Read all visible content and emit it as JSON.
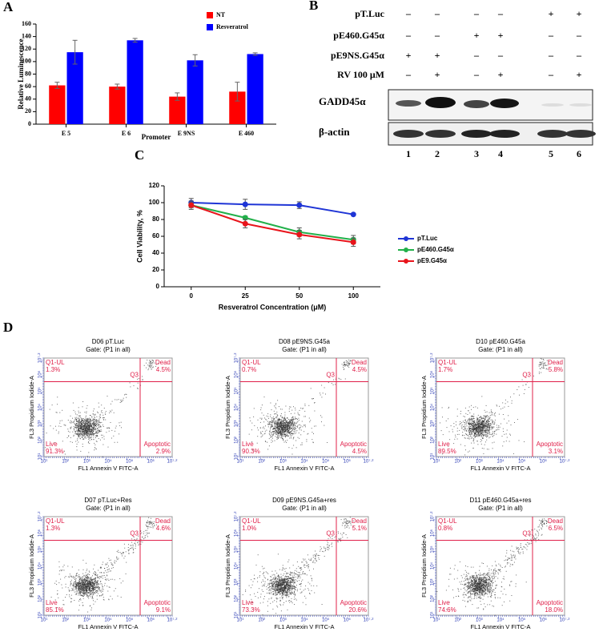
{
  "panel_labels": [
    "A",
    "B",
    "C",
    "D"
  ],
  "chart_data": [
    {
      "type": "bar",
      "xlabel": "Promoter",
      "ylabel": "Relative Luminescence",
      "categories": [
        "E 5",
        "E 6",
        "E 9NS",
        "E 460"
      ],
      "series": [
        {
          "name": "NT",
          "color": "#ff0000",
          "values": [
            62,
            60,
            44,
            52
          ],
          "errors": [
            5,
            4,
            6,
            15
          ]
        },
        {
          "name": "Resveratrol",
          "color": "#0000ff",
          "values": [
            115,
            134,
            102,
            112
          ],
          "errors": [
            19,
            3,
            9,
            2
          ]
        }
      ],
      "ylim": [
        0,
        160
      ],
      "yticks": [
        0,
        20,
        40,
        60,
        80,
        100,
        120,
        140,
        160
      ],
      "legend": "top-right"
    },
    {
      "type": "line",
      "xlabel": "Resveratrol Concentration (μM)",
      "ylabel": "Cell Viability, %",
      "categories": [
        "0",
        "25",
        "50",
        "100"
      ],
      "series": [
        {
          "name": "pT.Luc",
          "color": "#1f35d6",
          "values": [
            100,
            98,
            97,
            86
          ],
          "errors": [
            5,
            6,
            4,
            1
          ]
        },
        {
          "name": "pE460.G45α",
          "color": "#22b04a",
          "values": [
            97,
            82,
            65,
            56
          ],
          "errors": [
            3,
            2,
            5,
            5
          ]
        },
        {
          "name": "pE9.G45α",
          "color": "#e8141b",
          "values": [
            97,
            75,
            62,
            53
          ],
          "errors": [
            5,
            5,
            5,
            5
          ]
        }
      ],
      "ylim": [
        0,
        120
      ],
      "yticks": [
        0,
        20,
        40,
        60,
        80,
        100,
        120
      ],
      "legend": "right"
    }
  ],
  "blot": {
    "rows": [
      {
        "label": "pT.Luc",
        "signs": [
          "–",
          "–",
          "–",
          "–",
          "+",
          "+"
        ]
      },
      {
        "label": "pE460.G45α",
        "signs": [
          "–",
          "–",
          "+",
          "+",
          "–",
          "–"
        ]
      },
      {
        "label": "pE9NS.G45α",
        "signs": [
          "+",
          "+",
          "–",
          "–",
          "–",
          "–"
        ]
      },
      {
        "label": "RV 100 μM",
        "signs": [
          "–",
          "+",
          "–",
          "+",
          "–",
          "+"
        ]
      }
    ],
    "bands": [
      "GADD45α",
      "β-actin"
    ],
    "lanes": [
      "1",
      "2",
      "3",
      "4",
      "5",
      "6"
    ]
  },
  "flow": {
    "xlabel": "FL1 Annexin V FITC-A",
    "ylabel": "FL3 Propidium Iodide-A",
    "gate": "Gate: (P1 in all)",
    "q1_name": "Q1-UL",
    "dead_name": "Dead",
    "live_name": "Live",
    "apoptotic_name": "Apoptotic",
    "q3_name": "Q3",
    "ticks": [
      "10¹",
      "10²",
      "10³",
      "10⁴",
      "10⁵",
      "10⁶",
      "10⁷·²"
    ],
    "plots": [
      {
        "title": "D06 pT.Luc",
        "q1": "1.3%",
        "dead": "4.5%",
        "live": "91.3%",
        "apoptotic": "2.9%"
      },
      {
        "title": "D08 pE9NS.G45a",
        "q1": "0.7%",
        "dead": "4.5%",
        "live": "90.3%",
        "apoptotic": "4.5%"
      },
      {
        "title": "D10 pE460.G45a",
        "q1": "1.7%",
        "dead": "5.8%",
        "live": "89.5%",
        "apoptotic": "3.1%"
      },
      {
        "title": "D07 pT.Luc+Res",
        "q1": "1.3%",
        "dead": "4.6%",
        "live": "85.1%",
        "apoptotic": "9.1%"
      },
      {
        "title": "D09 pE9NS.G45a+res",
        "q1": "1.0%",
        "dead": "5.1%",
        "live": "73.3%",
        "apoptotic": "20.6%"
      },
      {
        "title": "D11 pE460.G45a+res",
        "q1": "0.8%",
        "dead": "6.5%",
        "live": "74.6%",
        "apoptotic": "18.0%"
      }
    ]
  }
}
